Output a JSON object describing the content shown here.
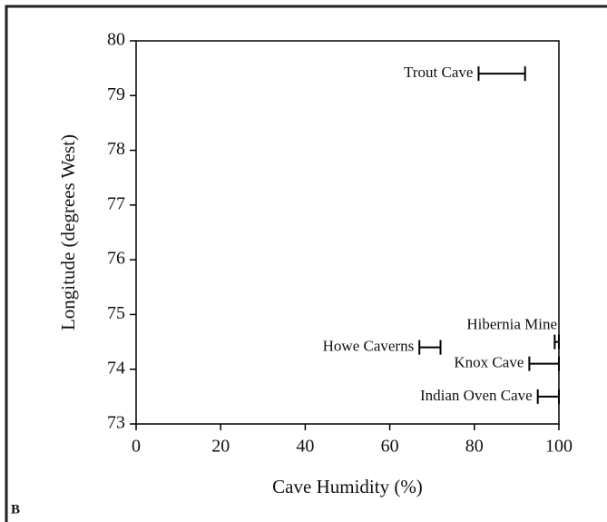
{
  "chart_data": {
    "type": "range",
    "xlabel": "Cave Humidity (%)",
    "ylabel": "Longitude (degrees West)",
    "panel_label": "B",
    "xlim": [
      0,
      100
    ],
    "xticks": [
      0,
      20,
      40,
      60,
      80,
      100
    ],
    "ylim": [
      73,
      80
    ],
    "yticks": [
      73,
      74,
      75,
      76,
      77,
      78,
      79,
      80
    ],
    "color": "#000000",
    "series": [
      {
        "name": "Trout Cave",
        "y": 79.4,
        "low": 81,
        "high": 92
      },
      {
        "name": "Hibernia Mine",
        "y": 74.5,
        "low": 99,
        "high": 100
      },
      {
        "name": "Howe Caverns",
        "y": 74.4,
        "low": 67,
        "high": 72
      },
      {
        "name": "Knox Cave",
        "y": 74.1,
        "low": 93,
        "high": 100
      },
      {
        "name": "Indian Oven Cave",
        "y": 73.5,
        "low": 95,
        "high": 100
      }
    ]
  }
}
